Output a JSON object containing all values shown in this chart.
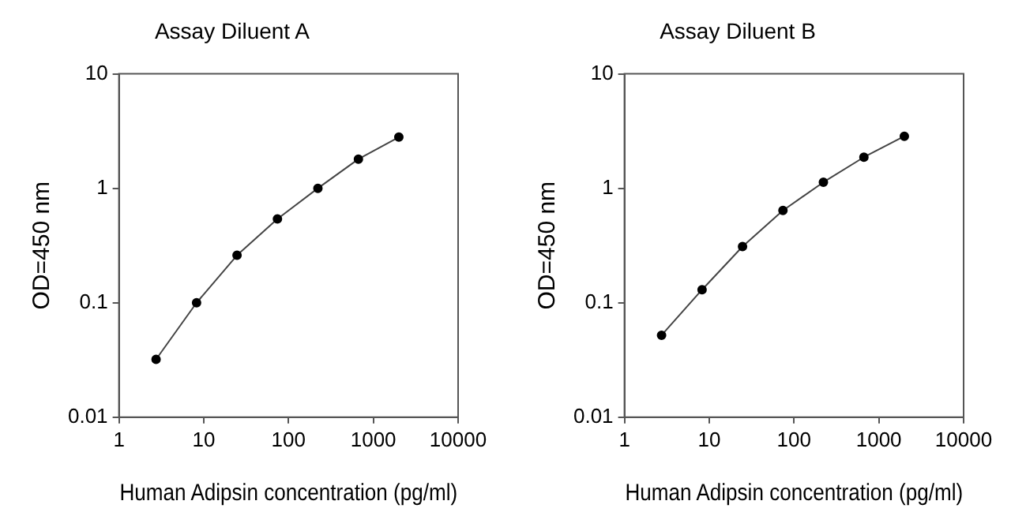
{
  "chart_data": [
    {
      "type": "line",
      "title": "Assay Diluent A",
      "xlabel": "Human Adipsin concentration (pg/ml)",
      "ylabel": "OD=450 nm",
      "log": "xy",
      "grid": false,
      "legend": false,
      "marker": "circle",
      "line_style": "solid",
      "x": [
        2.74,
        8.23,
        24.7,
        74,
        222,
        667,
        2000
      ],
      "series": [
        {
          "color": "#000000",
          "values": [
            0.032,
            0.1,
            0.26,
            0.54,
            1.0,
            1.8,
            2.8
          ]
        }
      ],
      "xlim": [
        1,
        10000
      ],
      "xticks": [
        1,
        10,
        100,
        1000,
        10000
      ],
      "ylim": [
        0.01,
        10
      ],
      "yticks": [
        0.01,
        0.1,
        1,
        10
      ]
    },
    {
      "type": "line",
      "title": "Assay Diluent B",
      "xlabel": "Human Adipsin concentration (pg/ml)",
      "ylabel": "OD=450 nm",
      "log": "xy",
      "grid": false,
      "legend": false,
      "marker": "circle",
      "line_style": "solid",
      "x": [
        2.74,
        8.23,
        24.7,
        74,
        222,
        667,
        2000
      ],
      "series": [
        {
          "color": "#000000",
          "values": [
            0.052,
            0.13,
            0.31,
            0.64,
            1.13,
            1.87,
            2.85
          ]
        }
      ],
      "xlim": [
        1,
        10000
      ],
      "xticks": [
        1,
        10,
        100,
        1000,
        10000
      ],
      "ylim": [
        0.01,
        10
      ],
      "yticks": [
        0.01,
        0.1,
        1,
        10
      ]
    }
  ]
}
